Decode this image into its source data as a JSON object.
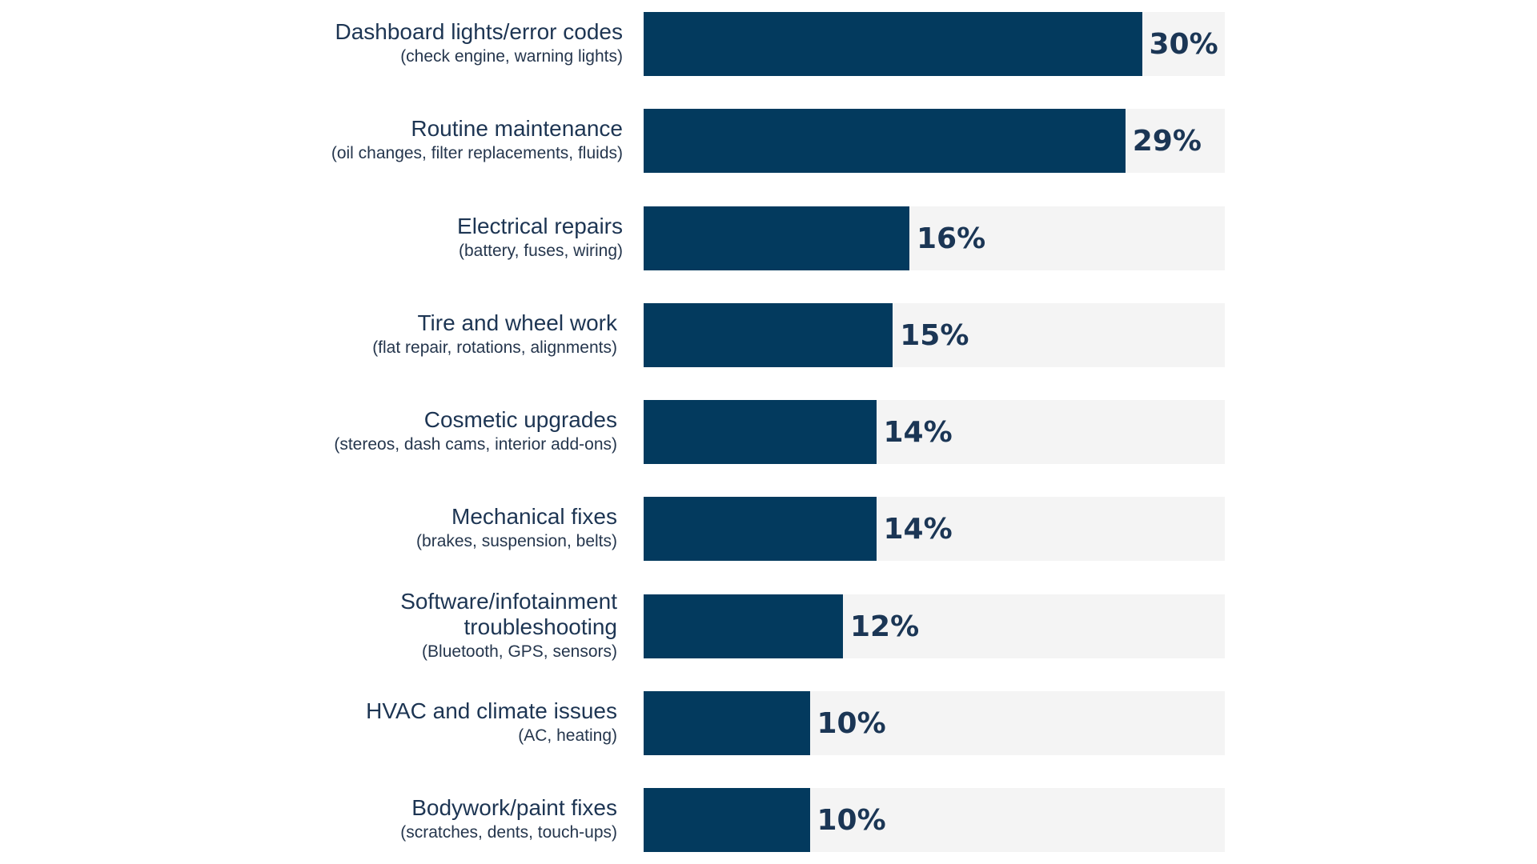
{
  "chart_data": {
    "type": "bar",
    "orientation": "horizontal",
    "categories": [
      {
        "label": "Dashboard lights/error codes",
        "sublabel": "(check engine, warning lights)"
      },
      {
        "label": "Routine maintenance",
        "sublabel": "(oil changes, filter replacements, fluids)"
      },
      {
        "label": "Electrical repairs",
        "sublabel": "(battery, fuses, wiring)"
      },
      {
        "label": "Tire and wheel work",
        "sublabel": "(flat repair, rotations, alignments)"
      },
      {
        "label": "Cosmetic upgrades",
        "sublabel": "(stereos, dash cams, interior add-ons)"
      },
      {
        "label": "Mechanical fixes",
        "sublabel": "(brakes, suspension, belts)"
      },
      {
        "label": "Software/infotainment troubleshooting",
        "sublabel": "(Bluetooth, GPS, sensors)"
      },
      {
        "label": "HVAC and climate issues",
        "sublabel": "(AC, heating)"
      },
      {
        "label": "Bodywork/paint fixes",
        "sublabel": "(scratches, dents, touch-ups)"
      }
    ],
    "values": [
      30,
      29,
      16,
      15,
      14,
      14,
      12,
      10,
      10
    ],
    "value_labels": [
      "30%",
      "29%",
      "16%",
      "15%",
      "14%",
      "14%",
      "12%",
      "10%",
      "10%"
    ],
    "unit": "%",
    "xlim": [
      0,
      35
    ],
    "grid": false,
    "colors": {
      "bar": "#033a5e",
      "track": "#f4f4f4",
      "text": "#1d3553"
    }
  }
}
